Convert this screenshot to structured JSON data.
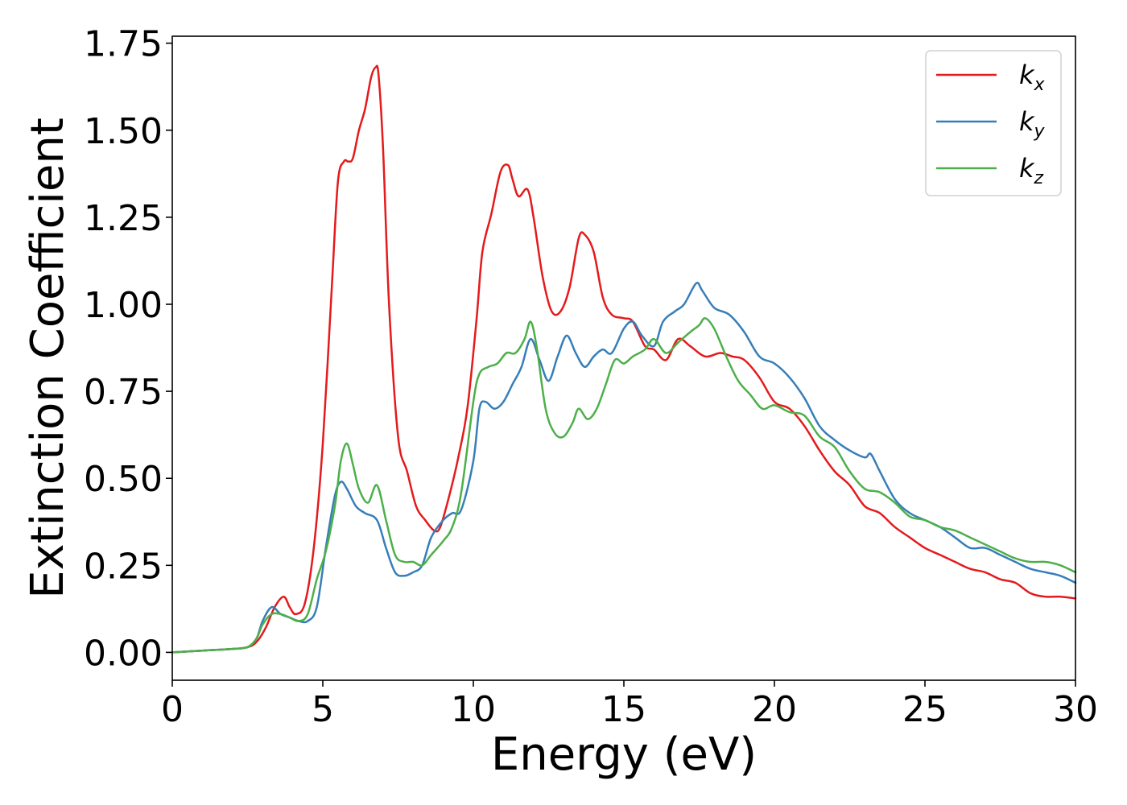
{
  "chart_data": {
    "type": "line",
    "xlabel": "Energy (eV)",
    "ylabel": "Extinction Coefficient",
    "xlim": [
      0,
      30
    ],
    "ylim": [
      -0.08,
      1.77
    ],
    "xticks": [
      0,
      5,
      10,
      15,
      20,
      25,
      30
    ],
    "xtick_labels": [
      "0",
      "5",
      "10",
      "15",
      "20",
      "25",
      "30"
    ],
    "yticks": [
      0.0,
      0.25,
      0.5,
      0.75,
      1.0,
      1.25,
      1.5,
      1.75
    ],
    "ytick_labels": [
      "0.00",
      "0.25",
      "0.50",
      "0.75",
      "1.00",
      "1.25",
      "1.50",
      "1.75"
    ],
    "grid": false,
    "legend_position": "top-right",
    "series": [
      {
        "name": "k",
        "subscript": "x",
        "color": "#e41a1c",
        "x": [
          0,
          1,
          2,
          2.5,
          2.8,
          3.1,
          3.4,
          3.7,
          3.9,
          4.1,
          4.4,
          4.7,
          5.0,
          5.3,
          5.5,
          5.7,
          5.85,
          6.0,
          6.2,
          6.4,
          6.6,
          6.75,
          6.85,
          7.0,
          7.2,
          7.5,
          7.8,
          8.1,
          8.4,
          8.7,
          8.9,
          9.2,
          9.5,
          9.8,
          10.1,
          10.3,
          10.6,
          10.9,
          11.15,
          11.3,
          11.5,
          11.8,
          12.0,
          12.3,
          12.6,
          12.9,
          13.2,
          13.5,
          13.7,
          14.0,
          14.3,
          14.6,
          15.0,
          15.3,
          15.7,
          16.0,
          16.4,
          16.8,
          17.2,
          17.7,
          18.2,
          18.6,
          19.0,
          19.5,
          20.0,
          20.5,
          21.0,
          21.5,
          22.0,
          22.5,
          23.0,
          23.5,
          24.0,
          24.5,
          25.0,
          25.5,
          26.0,
          26.5,
          27.0,
          27.5,
          28.0,
          28.5,
          29.0,
          29.5,
          30.0
        ],
        "y": [
          0.0,
          0.005,
          0.01,
          0.015,
          0.03,
          0.07,
          0.13,
          0.16,
          0.13,
          0.11,
          0.14,
          0.3,
          0.6,
          1.05,
          1.35,
          1.41,
          1.41,
          1.42,
          1.5,
          1.56,
          1.65,
          1.68,
          1.66,
          1.45,
          1.0,
          0.62,
          0.52,
          0.42,
          0.38,
          0.35,
          0.36,
          0.45,
          0.56,
          0.7,
          0.95,
          1.15,
          1.26,
          1.38,
          1.4,
          1.36,
          1.31,
          1.33,
          1.25,
          1.08,
          0.98,
          0.98,
          1.05,
          1.19,
          1.2,
          1.15,
          1.02,
          0.97,
          0.96,
          0.95,
          0.88,
          0.87,
          0.84,
          0.9,
          0.88,
          0.85,
          0.86,
          0.85,
          0.84,
          0.79,
          0.72,
          0.7,
          0.65,
          0.58,
          0.52,
          0.48,
          0.42,
          0.4,
          0.36,
          0.33,
          0.3,
          0.28,
          0.26,
          0.24,
          0.23,
          0.21,
          0.2,
          0.17,
          0.16,
          0.16,
          0.155
        ]
      },
      {
        "name": "k",
        "subscript": "y",
        "color": "#377eb8",
        "x": [
          0,
          1,
          2,
          2.5,
          2.8,
          3.0,
          3.3,
          3.6,
          3.9,
          4.2,
          4.5,
          4.8,
          5.1,
          5.4,
          5.6,
          5.8,
          6.1,
          6.4,
          6.8,
          7.1,
          7.4,
          7.7,
          8.0,
          8.3,
          8.6,
          9.0,
          9.3,
          9.6,
          10.0,
          10.2,
          10.4,
          10.7,
          11.0,
          11.3,
          11.6,
          11.9,
          12.2,
          12.5,
          12.8,
          13.1,
          13.4,
          13.7,
          14.0,
          14.3,
          14.6,
          15.0,
          15.3,
          15.6,
          16.0,
          16.3,
          16.7,
          17.0,
          17.4,
          17.6,
          18.0,
          18.5,
          19.0,
          19.5,
          20.0,
          20.5,
          21.0,
          21.5,
          22.0,
          22.5,
          23.0,
          23.2,
          23.5,
          24.0,
          24.5,
          25.0,
          25.5,
          26.0,
          26.5,
          27.0,
          27.5,
          28.0,
          28.5,
          29.0,
          29.5,
          30.0
        ],
        "y": [
          0.0,
          0.005,
          0.01,
          0.015,
          0.04,
          0.09,
          0.13,
          0.11,
          0.1,
          0.09,
          0.09,
          0.13,
          0.3,
          0.45,
          0.49,
          0.47,
          0.42,
          0.4,
          0.38,
          0.3,
          0.23,
          0.22,
          0.23,
          0.25,
          0.33,
          0.38,
          0.4,
          0.41,
          0.55,
          0.7,
          0.72,
          0.7,
          0.72,
          0.77,
          0.82,
          0.9,
          0.84,
          0.78,
          0.85,
          0.91,
          0.86,
          0.82,
          0.85,
          0.87,
          0.86,
          0.93,
          0.95,
          0.91,
          0.88,
          0.95,
          0.98,
          1.0,
          1.06,
          1.04,
          0.99,
          0.97,
          0.92,
          0.85,
          0.83,
          0.79,
          0.73,
          0.65,
          0.61,
          0.58,
          0.56,
          0.57,
          0.52,
          0.44,
          0.4,
          0.38,
          0.36,
          0.33,
          0.3,
          0.3,
          0.28,
          0.26,
          0.24,
          0.23,
          0.22,
          0.2
        ]
      },
      {
        "name": "k",
        "subscript": "z",
        "color": "#4daf4a",
        "x": [
          0,
          1,
          2,
          2.5,
          2.8,
          3.0,
          3.3,
          3.6,
          3.9,
          4.2,
          4.5,
          4.8,
          5.1,
          5.4,
          5.6,
          5.8,
          6.0,
          6.2,
          6.5,
          6.8,
          7.1,
          7.4,
          7.7,
          8.0,
          8.3,
          8.6,
          9.0,
          9.3,
          9.6,
          10.0,
          10.2,
          10.5,
          10.8,
          11.1,
          11.4,
          11.7,
          11.9,
          12.1,
          12.4,
          12.7,
          13.0,
          13.3,
          13.5,
          13.8,
          14.1,
          14.4,
          14.7,
          15.0,
          15.3,
          15.7,
          16.0,
          16.4,
          16.8,
          17.2,
          17.5,
          17.7,
          18.0,
          18.4,
          18.8,
          19.2,
          19.6,
          20.0,
          20.5,
          21.0,
          21.5,
          22.0,
          22.5,
          23.0,
          23.5,
          24.0,
          24.5,
          25.0,
          25.5,
          26.0,
          26.5,
          27.0,
          27.5,
          28.0,
          28.5,
          29.0,
          29.5,
          30.0
        ],
        "y": [
          0.0,
          0.005,
          0.01,
          0.015,
          0.04,
          0.08,
          0.11,
          0.11,
          0.1,
          0.09,
          0.11,
          0.21,
          0.29,
          0.42,
          0.55,
          0.6,
          0.54,
          0.47,
          0.43,
          0.48,
          0.38,
          0.28,
          0.26,
          0.26,
          0.25,
          0.28,
          0.32,
          0.36,
          0.46,
          0.72,
          0.8,
          0.82,
          0.83,
          0.86,
          0.86,
          0.9,
          0.95,
          0.88,
          0.7,
          0.63,
          0.62,
          0.66,
          0.7,
          0.67,
          0.7,
          0.77,
          0.84,
          0.83,
          0.85,
          0.87,
          0.9,
          0.86,
          0.89,
          0.92,
          0.94,
          0.96,
          0.93,
          0.85,
          0.78,
          0.74,
          0.7,
          0.71,
          0.69,
          0.68,
          0.62,
          0.59,
          0.52,
          0.47,
          0.46,
          0.43,
          0.39,
          0.38,
          0.36,
          0.35,
          0.33,
          0.31,
          0.29,
          0.27,
          0.26,
          0.26,
          0.25,
          0.23
        ]
      }
    ]
  }
}
